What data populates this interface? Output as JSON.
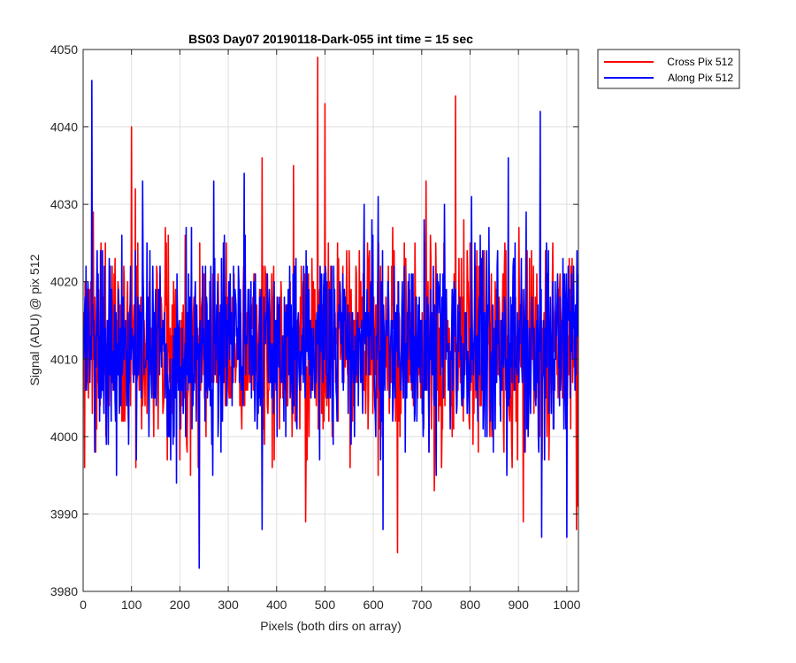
{
  "chart_data": {
    "type": "line",
    "title": "BS03 Day07 20190118-Dark-055 int time = 15 sec",
    "xlabel": "Pixels (both dirs on array)",
    "ylabel": "Signal (ADU) @ pix 512",
    "xlim": [
      0,
      1024
    ],
    "ylim": [
      3980,
      4050
    ],
    "xticks": [
      0,
      100,
      200,
      300,
      400,
      500,
      600,
      700,
      800,
      900,
      1000
    ],
    "yticks": [
      3980,
      3990,
      4000,
      4010,
      4020,
      4030,
      4040,
      4050
    ],
    "grid": true,
    "legend_position": "outside-top-right",
    "series": [
      {
        "name": "Cross Pix 512",
        "color": "#ff0000",
        "x_start": 1,
        "x_step": 1,
        "approx_mean": 4012,
        "approx_std": 6.5,
        "peaks": [
          {
            "x": 100,
            "y": 4040
          },
          {
            "x": 485,
            "y": 4049
          },
          {
            "x": 500,
            "y": 4043
          },
          {
            "x": 770,
            "y": 4044
          },
          {
            "x": 370,
            "y": 4036
          },
          {
            "x": 435,
            "y": 4035
          }
        ],
        "troughs": [
          {
            "x": 240,
            "y": 3984
          },
          {
            "x": 650,
            "y": 3985
          },
          {
            "x": 1020,
            "y": 3988
          },
          {
            "x": 460,
            "y": 3989
          },
          {
            "x": 910,
            "y": 3989
          }
        ]
      },
      {
        "name": "Along Pix 512",
        "color": "#0000ff",
        "x_start": 1,
        "x_step": 1,
        "approx_mean": 4012,
        "approx_std": 6.5,
        "peaks": [
          {
            "x": 18,
            "y": 4046
          },
          {
            "x": 945,
            "y": 4042
          },
          {
            "x": 270,
            "y": 4033
          },
          {
            "x": 610,
            "y": 4031
          }
        ],
        "troughs": [
          {
            "x": 240,
            "y": 3983
          },
          {
            "x": 370,
            "y": 3988
          },
          {
            "x": 948,
            "y": 3987
          },
          {
            "x": 1000,
            "y": 3987
          },
          {
            "x": 620,
            "y": 3988
          }
        ]
      }
    ]
  }
}
